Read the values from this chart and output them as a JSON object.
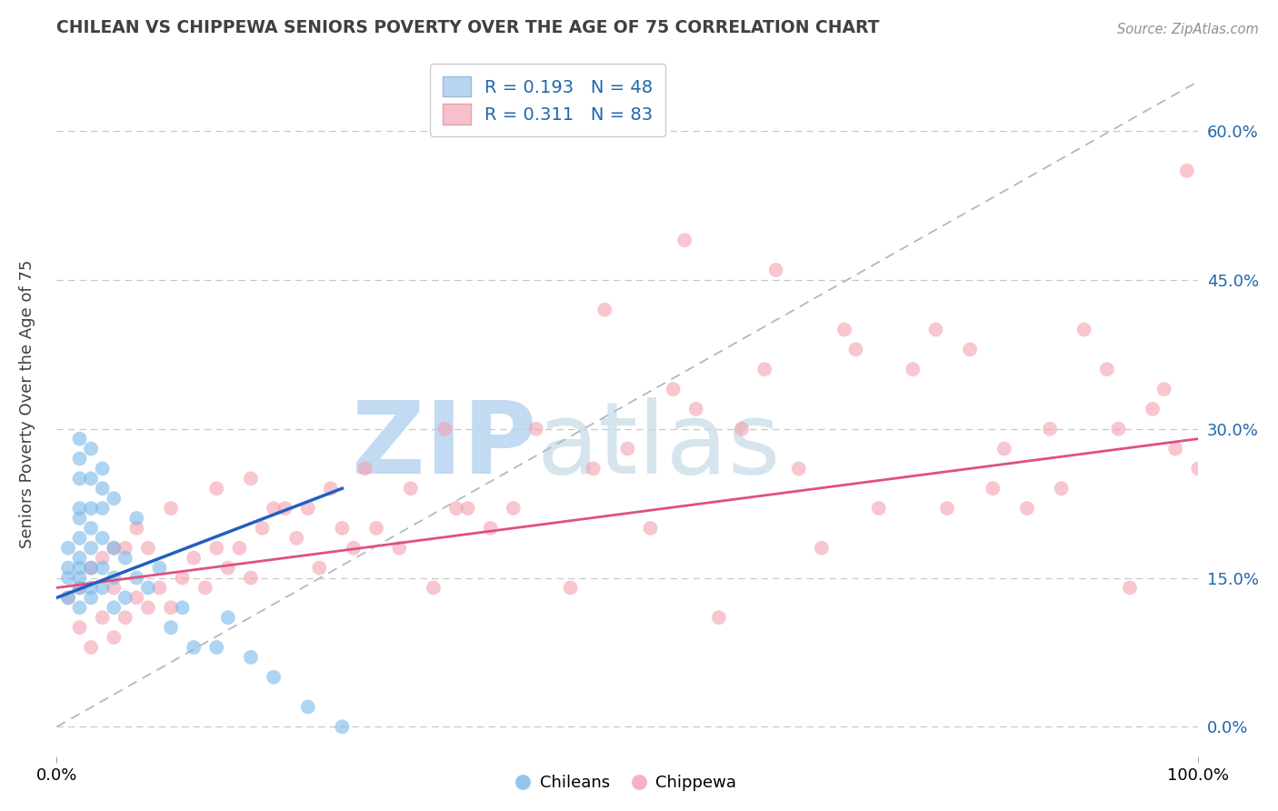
{
  "title": "CHILEAN VS CHIPPEWA SENIORS POVERTY OVER THE AGE OF 75 CORRELATION CHART",
  "source": "Source: ZipAtlas.com",
  "ylabel": "Seniors Poverty Over the Age of 75",
  "xlabel": "",
  "xlim": [
    0,
    100
  ],
  "ylim": [
    -3,
    68
  ],
  "yticks": [
    0,
    15,
    30,
    45,
    60
  ],
  "ytick_labels": [
    "0.0%",
    "15.0%",
    "30.0%",
    "45.0%",
    "60.0%"
  ],
  "xticks": [
    0,
    100
  ],
  "xtick_labels": [
    "0.0%",
    "100.0%"
  ],
  "chilean_R": 0.193,
  "chilean_N": 48,
  "chippewa_R": 0.311,
  "chippewa_N": 83,
  "chilean_color": "#7ab8e8",
  "chippewa_color": "#f4a0b0",
  "trend_chilean_color": "#2060c0",
  "trend_chippewa_color": "#e05080",
  "legend_box_chilean": "#b8d4f0",
  "legend_box_chippewa": "#f8c0cc",
  "background_color": "#ffffff",
  "grid_color": "#c8c8c8",
  "watermark": "ZIPatlas",
  "watermark_color": "#cce0f5",
  "title_color": "#404040",
  "legend_text_color": "#2166ac",
  "chilean_x": [
    1,
    1,
    1,
    1,
    2,
    2,
    2,
    2,
    2,
    2,
    2,
    2,
    2,
    2,
    2,
    3,
    3,
    3,
    3,
    3,
    3,
    3,
    3,
    4,
    4,
    4,
    4,
    4,
    4,
    5,
    5,
    5,
    5,
    6,
    6,
    7,
    7,
    8,
    9,
    10,
    11,
    12,
    14,
    15,
    17,
    19,
    22,
    25
  ],
  "chilean_y": [
    13,
    15,
    16,
    18,
    12,
    14,
    15,
    16,
    17,
    19,
    21,
    22,
    25,
    27,
    29,
    13,
    14,
    16,
    18,
    20,
    22,
    25,
    28,
    14,
    16,
    19,
    22,
    24,
    26,
    12,
    15,
    18,
    23,
    13,
    17,
    15,
    21,
    14,
    16,
    10,
    12,
    8,
    8,
    11,
    7,
    5,
    2,
    0
  ],
  "chippewa_x": [
    1,
    2,
    2,
    3,
    3,
    4,
    4,
    5,
    5,
    5,
    6,
    6,
    7,
    7,
    8,
    8,
    9,
    10,
    10,
    11,
    12,
    13,
    14,
    14,
    15,
    16,
    17,
    17,
    18,
    19,
    20,
    21,
    22,
    23,
    24,
    25,
    26,
    27,
    28,
    30,
    31,
    33,
    34,
    35,
    36,
    38,
    40,
    42,
    45,
    47,
    50,
    52,
    54,
    56,
    58,
    60,
    62,
    65,
    67,
    69,
    72,
    75,
    77,
    80,
    82,
    85,
    87,
    90,
    92,
    94,
    96,
    98,
    100,
    55,
    48,
    63,
    70,
    78,
    83,
    88,
    93,
    97,
    99
  ],
  "chippewa_y": [
    13,
    10,
    14,
    8,
    16,
    11,
    17,
    9,
    14,
    18,
    11,
    18,
    13,
    20,
    12,
    18,
    14,
    12,
    22,
    15,
    17,
    14,
    18,
    24,
    16,
    18,
    15,
    25,
    20,
    22,
    22,
    19,
    22,
    16,
    24,
    20,
    18,
    26,
    20,
    18,
    24,
    14,
    30,
    22,
    22,
    20,
    22,
    30,
    14,
    26,
    28,
    20,
    34,
    32,
    11,
    30,
    36,
    26,
    18,
    40,
    22,
    36,
    40,
    38,
    24,
    22,
    30,
    40,
    36,
    14,
    32,
    28,
    26,
    49,
    42,
    46,
    38,
    22,
    28,
    24,
    30,
    34,
    56
  ],
  "ref_line": [
    [
      0,
      100
    ],
    [
      0,
      65
    ]
  ],
  "chilean_trend_x": [
    0,
    25
  ],
  "chilean_trend_y": [
    13,
    24
  ],
  "chippewa_trend_x": [
    0,
    100
  ],
  "chippewa_trend_y": [
    14,
    29
  ]
}
